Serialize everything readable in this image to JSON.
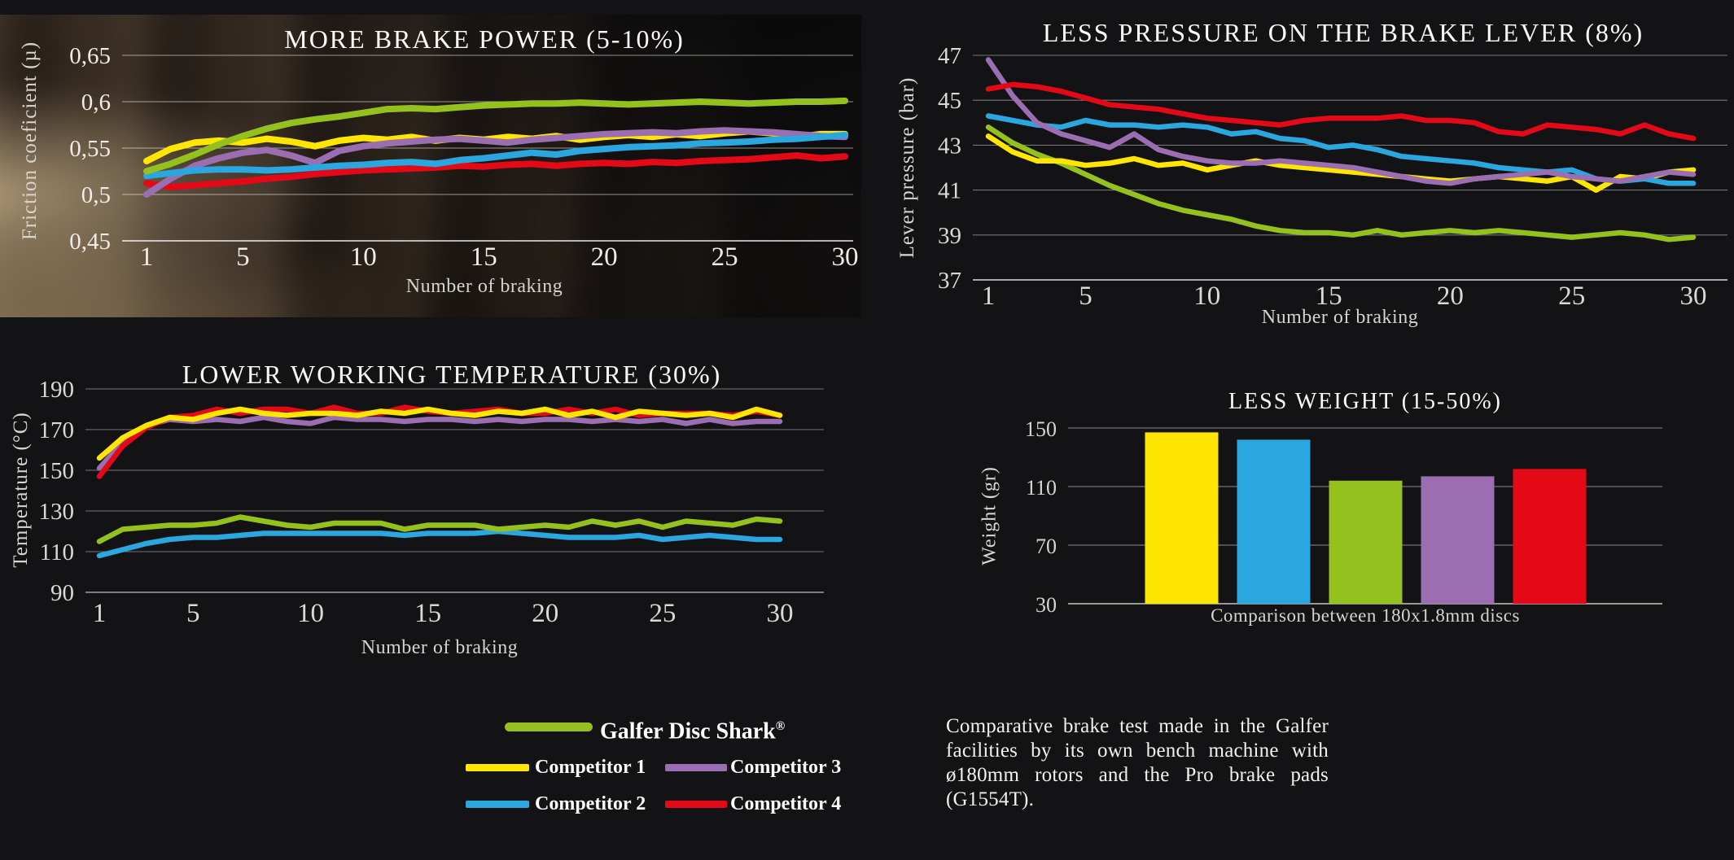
{
  "page": {
    "background": "#131316"
  },
  "colors": {
    "galfer": "#95c11f",
    "competitor1": "#ffe600",
    "competitor2": "#2ba6df",
    "competitor3": "#9a6eb1",
    "competitor4": "#e30917"
  },
  "chart_data": [
    {
      "id": "brake_power",
      "type": "line",
      "title": "MORE BRAKE POWER (5-10%)",
      "xlabel": "Number of braking",
      "ylabel": "Friction coeficient (µ)",
      "ylim": [
        0.45,
        0.65
      ],
      "y_ticks": [
        0.65,
        0.6,
        0.55,
        0.5,
        0.45
      ],
      "y_tick_labels": [
        "0,65",
        "0,6",
        "0,55",
        "0,5",
        "0,45"
      ],
      "x_ticks": [
        1,
        5,
        10,
        15,
        20,
        25,
        30
      ],
      "x": [
        1,
        2,
        3,
        4,
        5,
        6,
        7,
        8,
        9,
        10,
        11,
        12,
        13,
        14,
        15,
        16,
        17,
        18,
        19,
        20,
        21,
        22,
        23,
        24,
        25,
        26,
        27,
        28,
        29,
        30
      ],
      "series": [
        {
          "name": "Competitor 4",
          "color": "#e30917",
          "values": [
            0.512,
            0.508,
            0.51,
            0.512,
            0.514,
            0.517,
            0.519,
            0.522,
            0.524,
            0.526,
            0.527,
            0.528,
            0.529,
            0.531,
            0.53,
            0.532,
            0.533,
            0.531,
            0.533,
            0.534,
            0.533,
            0.535,
            0.534,
            0.536,
            0.537,
            0.538,
            0.54,
            0.542,
            0.539,
            0.541
          ]
        },
        {
          "name": "Competitor 1",
          "color": "#ffe600",
          "values": [
            0.536,
            0.549,
            0.556,
            0.558,
            0.556,
            0.56,
            0.557,
            0.552,
            0.558,
            0.561,
            0.559,
            0.562,
            0.558,
            0.561,
            0.559,
            0.562,
            0.56,
            0.563,
            0.559,
            0.562,
            0.564,
            0.562,
            0.565,
            0.563,
            0.566,
            0.568,
            0.566,
            0.562,
            0.565,
            0.565
          ]
        },
        {
          "name": "Competitor 3",
          "color": "#9a6eb1",
          "values": [
            0.5,
            0.517,
            0.531,
            0.539,
            0.545,
            0.548,
            0.542,
            0.534,
            0.547,
            0.552,
            0.555,
            0.557,
            0.559,
            0.56,
            0.558,
            0.556,
            0.559,
            0.561,
            0.563,
            0.565,
            0.566,
            0.567,
            0.566,
            0.568,
            0.569,
            0.568,
            0.567,
            0.565,
            0.563,
            0.562
          ]
        },
        {
          "name": "Competitor 2",
          "color": "#2ba6df",
          "values": [
            0.52,
            0.523,
            0.526,
            0.527,
            0.527,
            0.526,
            0.527,
            0.529,
            0.531,
            0.532,
            0.534,
            0.535,
            0.533,
            0.537,
            0.539,
            0.542,
            0.545,
            0.543,
            0.547,
            0.549,
            0.551,
            0.552,
            0.553,
            0.555,
            0.556,
            0.557,
            0.559,
            0.56,
            0.562,
            0.564
          ]
        },
        {
          "name": "Galfer Disc Shark®",
          "color": "#95c11f",
          "values": [
            0.525,
            0.533,
            0.543,
            0.554,
            0.563,
            0.571,
            0.577,
            0.581,
            0.584,
            0.588,
            0.592,
            0.593,
            0.592,
            0.594,
            0.596,
            0.597,
            0.598,
            0.598,
            0.599,
            0.598,
            0.597,
            0.598,
            0.599,
            0.6,
            0.599,
            0.598,
            0.599,
            0.6,
            0.6,
            0.601
          ]
        }
      ]
    },
    {
      "id": "lever_pressure",
      "type": "line",
      "title": "LESS PRESSURE ON THE BRAKE LEVER (8%)",
      "xlabel": "Number of braking",
      "ylabel": "Lever pressure (bar)",
      "ylim": [
        37,
        47
      ],
      "y_ticks": [
        47,
        45,
        43,
        41,
        39,
        37
      ],
      "y_tick_labels": [
        "47",
        "45",
        "43",
        "41",
        "39",
        "37"
      ],
      "x_ticks": [
        1,
        5,
        10,
        15,
        20,
        25,
        30
      ],
      "x": [
        1,
        2,
        3,
        4,
        5,
        6,
        7,
        8,
        9,
        10,
        11,
        12,
        13,
        14,
        15,
        16,
        17,
        18,
        19,
        20,
        21,
        22,
        23,
        24,
        25,
        26,
        27,
        28,
        29,
        30
      ],
      "series": [
        {
          "name": "Galfer Disc Shark®",
          "color": "#95c11f",
          "values": [
            43.8,
            43.1,
            42.6,
            42.2,
            41.7,
            41.2,
            40.8,
            40.4,
            40.1,
            39.9,
            39.7,
            39.4,
            39.2,
            39.1,
            39.1,
            39.0,
            39.2,
            39.0,
            39.1,
            39.2,
            39.1,
            39.2,
            39.1,
            39.0,
            38.9,
            39.0,
            39.1,
            39.0,
            38.8,
            38.9
          ]
        },
        {
          "name": "Competitor 1",
          "color": "#ffe600",
          "values": [
            43.4,
            42.7,
            42.3,
            42.3,
            42.1,
            42.2,
            42.4,
            42.1,
            42.2,
            41.9,
            42.1,
            42.3,
            42.1,
            42.0,
            41.9,
            41.8,
            41.7,
            41.6,
            41.5,
            41.4,
            41.5,
            41.6,
            41.5,
            41.4,
            41.6,
            41.0,
            41.6,
            41.5,
            41.8,
            41.9
          ]
        },
        {
          "name": "Competitor 2",
          "color": "#2ba6df",
          "values": [
            44.3,
            44.1,
            43.9,
            43.8,
            44.1,
            43.9,
            43.9,
            43.8,
            43.9,
            43.8,
            43.5,
            43.6,
            43.3,
            43.2,
            42.9,
            43.0,
            42.8,
            42.5,
            42.4,
            42.3,
            42.2,
            42.0,
            41.9,
            41.8,
            41.9,
            41.5,
            41.4,
            41.5,
            41.3,
            41.3
          ]
        },
        {
          "name": "Competitor 3",
          "color": "#9a6eb1",
          "values": [
            46.8,
            45.2,
            44.0,
            43.5,
            43.2,
            42.9,
            43.5,
            42.8,
            42.5,
            42.3,
            42.2,
            42.2,
            42.3,
            42.2,
            42.1,
            42.0,
            41.8,
            41.6,
            41.4,
            41.3,
            41.5,
            41.6,
            41.7,
            41.8,
            41.6,
            41.5,
            41.4,
            41.6,
            41.8,
            41.7
          ]
        },
        {
          "name": "Competitor 4",
          "color": "#e30917",
          "values": [
            45.5,
            45.7,
            45.6,
            45.4,
            45.1,
            44.8,
            44.7,
            44.6,
            44.4,
            44.2,
            44.1,
            44.0,
            43.9,
            44.1,
            44.2,
            44.2,
            44.2,
            44.3,
            44.1,
            44.1,
            44.0,
            43.6,
            43.5,
            43.9,
            43.8,
            43.7,
            43.5,
            43.9,
            43.5,
            43.3
          ]
        }
      ]
    },
    {
      "id": "temperature",
      "type": "line",
      "title": "LOWER WORKING TEMPERATURE (30%)",
      "xlabel": "Number of braking",
      "ylabel": "Temperature (°C)",
      "ylim": [
        90,
        190
      ],
      "y_ticks": [
        190,
        170,
        150,
        130,
        110,
        90
      ],
      "y_tick_labels": [
        "190",
        "170",
        "150",
        "130",
        "110",
        "90"
      ],
      "x_ticks": [
        1,
        5,
        10,
        15,
        20,
        25,
        30
      ],
      "x": [
        1,
        2,
        3,
        4,
        5,
        6,
        7,
        8,
        9,
        10,
        11,
        12,
        13,
        14,
        15,
        16,
        17,
        18,
        19,
        20,
        21,
        22,
        23,
        24,
        25,
        26,
        27,
        28,
        29,
        30
      ],
      "series": [
        {
          "name": "Competitor 2",
          "color": "#2ba6df",
          "values": [
            108,
            111,
            114,
            116,
            117,
            117,
            118,
            119,
            119,
            119,
            119,
            119,
            119,
            118,
            119,
            119,
            119,
            120,
            119,
            118,
            117,
            117,
            117,
            118,
            116,
            117,
            118,
            117,
            116,
            116
          ]
        },
        {
          "name": "Galfer Disc Shark®",
          "color": "#95c11f",
          "values": [
            115,
            121,
            122,
            123,
            123,
            124,
            127,
            125,
            123,
            122,
            124,
            124,
            124,
            121,
            123,
            123,
            123,
            121,
            122,
            123,
            122,
            125,
            123,
            125,
            122,
            125,
            124,
            123,
            126,
            125
          ]
        },
        {
          "name": "Competitor 3",
          "color": "#9a6eb1",
          "values": [
            151,
            164,
            172,
            175,
            174,
            175,
            174,
            176,
            174,
            173,
            176,
            175,
            175,
            174,
            175,
            175,
            174,
            175,
            174,
            175,
            175,
            174,
            175,
            174,
            175,
            173,
            175,
            173,
            174,
            174
          ]
        },
        {
          "name": "Competitor 4",
          "color": "#e30917",
          "values": [
            147,
            162,
            171,
            176,
            177,
            180,
            178,
            180,
            180,
            178,
            181,
            178,
            178,
            181,
            179,
            178,
            179,
            180,
            178,
            178,
            180,
            178,
            180,
            177,
            178,
            178,
            178,
            177,
            179,
            177
          ]
        },
        {
          "name": "Competitor 1",
          "color": "#ffe600",
          "values": [
            156,
            166,
            172,
            176,
            175,
            178,
            180,
            178,
            177,
            178,
            178,
            177,
            179,
            178,
            180,
            178,
            177,
            179,
            178,
            180,
            177,
            179,
            176,
            179,
            178,
            177,
            178,
            176,
            180,
            177
          ]
        }
      ]
    },
    {
      "id": "weight",
      "type": "bar",
      "title": "LESS WEIGHT (15-50%)",
      "xlabel": "Comparison between 180x1.8mm discs",
      "ylabel": "Weight (gr)",
      "ylim": [
        30,
        155
      ],
      "y_ticks": [
        150,
        110,
        70,
        30
      ],
      "y_tick_labels": [
        "150",
        "110",
        "70",
        "30"
      ],
      "categories": [
        "Competitor 1",
        "Competitor 2",
        "Galfer Disc Shark®",
        "Competitor 3",
        "Competitor 4"
      ],
      "values": [
        147,
        142,
        114,
        117,
        122
      ],
      "colors": [
        "#ffe600",
        "#2ba6df",
        "#95c11f",
        "#9a6eb1",
        "#e30917"
      ]
    }
  ],
  "legend": {
    "galfer": {
      "label": "Galfer Disc Shark",
      "reg": "®",
      "color": "#95c11f"
    },
    "competitor1": {
      "label": "Competitor 1",
      "color": "#ffe600"
    },
    "competitor2": {
      "label": "Competitor 2",
      "color": "#2ba6df"
    },
    "competitor3": {
      "label": "Competitor 3",
      "color": "#9a6eb1"
    },
    "competitor4": {
      "label": "Competitor 4",
      "color": "#e30917"
    }
  },
  "note": {
    "text": "Comparative brake test made in the Galfer facilities by its own bench machine with ø180mm rotors and the Pro brake pads (G1554T)."
  }
}
